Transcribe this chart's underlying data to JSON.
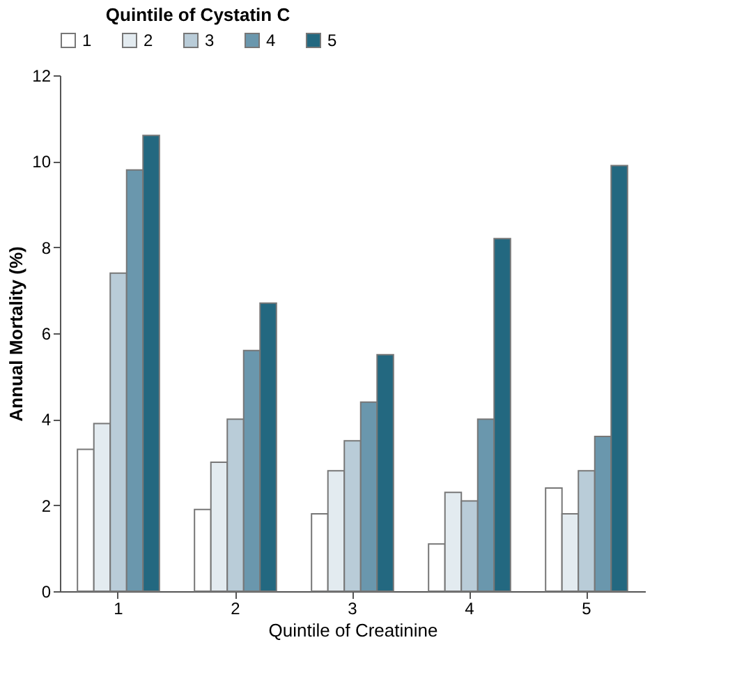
{
  "chart_data": {
    "type": "bar",
    "xlabel": "Quintile of Creatinine",
    "ylabel": "Annual Mortality (%)",
    "legend_title": "Quintile of Cystatin C",
    "categories": [
      "1",
      "2",
      "3",
      "4",
      "5"
    ],
    "series": [
      {
        "name": "1",
        "color": "#ffffff",
        "values": [
          3.3,
          1.9,
          1.8,
          1.1,
          2.4
        ]
      },
      {
        "name": "2",
        "color": "#e3ebf0",
        "values": [
          3.9,
          3.0,
          2.8,
          2.3,
          1.8
        ]
      },
      {
        "name": "3",
        "color": "#b9ccd8",
        "values": [
          7.4,
          4.0,
          3.5,
          2.1,
          2.8
        ]
      },
      {
        "name": "4",
        "color": "#6a97ad",
        "values": [
          9.8,
          5.6,
          4.4,
          4.0,
          3.6
        ]
      },
      {
        "name": "5",
        "color": "#236880",
        "values": [
          10.6,
          6.7,
          5.5,
          8.2,
          9.9
        ]
      }
    ],
    "ylim": [
      0,
      12
    ],
    "yticks": [
      0,
      2,
      4,
      6,
      8,
      10,
      12
    ],
    "grid": false,
    "legend": "top"
  }
}
